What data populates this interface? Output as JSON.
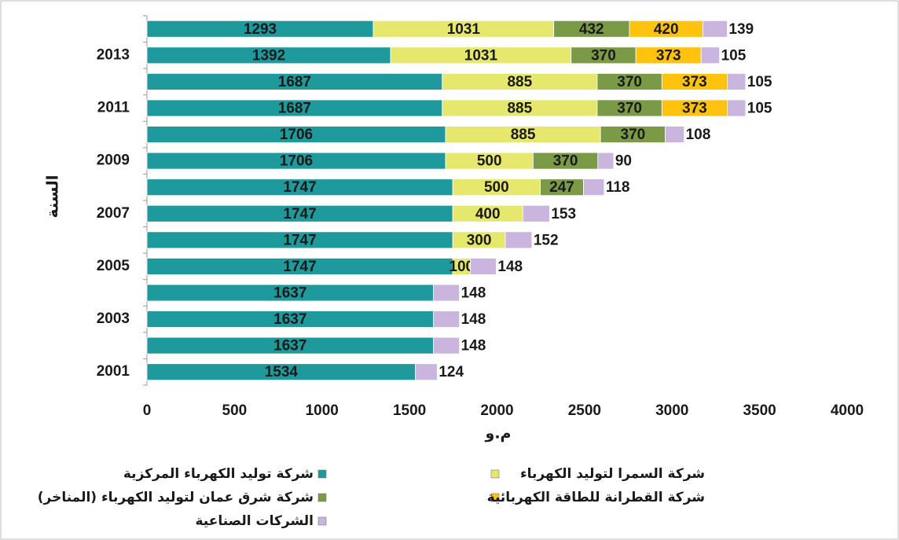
{
  "chart_data": {
    "type": "stacked-barh",
    "x_label": "م.و",
    "y_label": "السنة",
    "categories": [
      "2001",
      null,
      "2003",
      null,
      "2005",
      null,
      "2007",
      null,
      "2009",
      null,
      "2011",
      null,
      "2013",
      null
    ],
    "series": [
      {
        "name": "شركة توليد الكهرباء المركزية",
        "color": "#1f9a9c",
        "values": [
          1534,
          1637,
          1637,
          1637,
          1747,
          1747,
          1747,
          1747,
          1706,
          1706,
          1687,
          1687,
          1392,
          1293
        ]
      },
      {
        "name": "شركة السمرا لتوليد الكهرباء",
        "color": "#e6e86e",
        "values": [
          null,
          null,
          null,
          null,
          100,
          300,
          400,
          500,
          500,
          885,
          885,
          885,
          1031,
          1031
        ]
      },
      {
        "name": "شركة شرق عمان لتوليد الكهرباء (المناخر)",
        "color": "#7b9a47",
        "values": [
          null,
          null,
          null,
          null,
          null,
          null,
          null,
          247,
          370,
          370,
          370,
          370,
          370,
          432
        ]
      },
      {
        "name": "شركة القطرانة للطاقة الكهربائية",
        "color": "#ffc20e",
        "values": [
          null,
          null,
          null,
          null,
          null,
          null,
          null,
          null,
          null,
          null,
          373,
          373,
          373,
          420
        ]
      },
      {
        "name": "الشركات الصناعية",
        "color": "#c9b5dd",
        "values": [
          124,
          148,
          148,
          148,
          148,
          152,
          153,
          118,
          90,
          108,
          105,
          105,
          105,
          139
        ]
      }
    ],
    "xlim": [
      0,
      4000
    ],
    "xticks": [
      0,
      500,
      1000,
      1500,
      2000,
      2500,
      3000,
      3500,
      4000
    ]
  }
}
